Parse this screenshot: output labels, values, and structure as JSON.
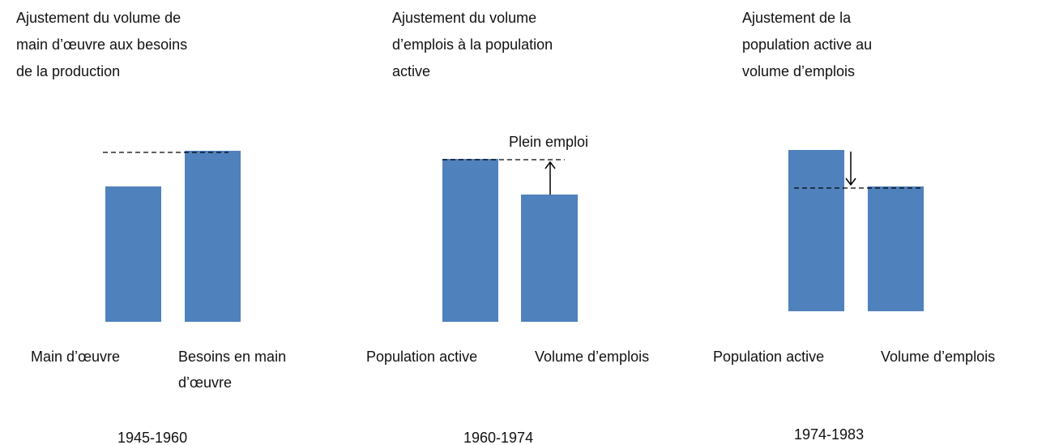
{
  "panels": [
    {
      "title": [
        "Ajustement du volume de",
        "main d’œuvre aux besoins",
        "de la production"
      ],
      "labels": [
        [
          "Main d’œuvre"
        ],
        [
          "Besoins en main",
          "d’œuvre"
        ]
      ],
      "period": "1945-1960"
    },
    {
      "title": [
        "Ajustement du volume",
        "d’emplois à la population",
        "active"
      ],
      "annotation": "Plein emploi",
      "labels": [
        [
          "Population active"
        ],
        [
          "Volume d’emplois"
        ]
      ],
      "period": "1960-1974"
    },
    {
      "title": [
        "Ajustement de la",
        "population active au",
        "volume d’emplois"
      ],
      "labels": [
        [
          "Population active"
        ],
        [
          "Volume d’emplois"
        ]
      ],
      "period": "1974-1983"
    }
  ]
}
